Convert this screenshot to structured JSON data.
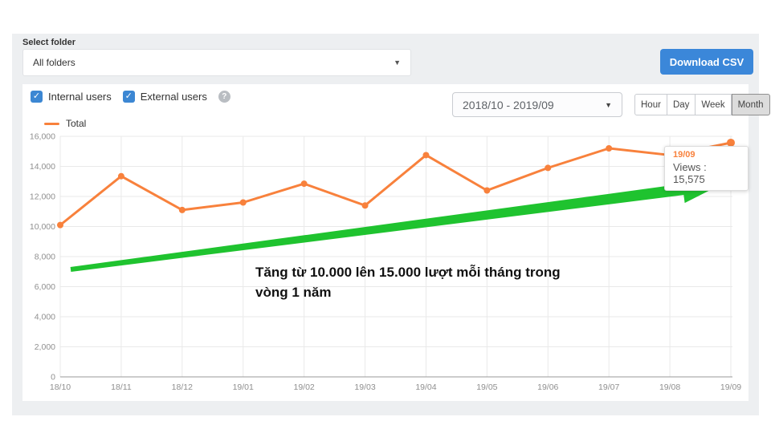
{
  "controls": {
    "select_folder_label": "Select folder",
    "folder_value": "All folders",
    "download_button": "Download CSV"
  },
  "filters": {
    "internal_label": "Internal users",
    "external_label": "External users",
    "date_range": "2018/10 - 2019/09",
    "granularity": [
      "Hour",
      "Day",
      "Week",
      "Month"
    ],
    "granularity_selected": "Month"
  },
  "chart_data": {
    "type": "line",
    "title": "",
    "xlabel": "",
    "ylabel": "",
    "categories": [
      "18/10",
      "18/11",
      "18/12",
      "19/01",
      "19/02",
      "19/03",
      "19/04",
      "19/05",
      "19/06",
      "19/07",
      "19/08",
      "19/09"
    ],
    "series": [
      {
        "name": "Total",
        "color": "#f8813c",
        "values": [
          10100,
          13350,
          11100,
          11600,
          12850,
          11400,
          14750,
          12400,
          13900,
          15200,
          14750,
          15575
        ]
      }
    ],
    "ylim": [
      0,
      16000
    ],
    "ytick_step": 2000,
    "grid": true,
    "legend_position": "top-left"
  },
  "tooltip": {
    "date": "19/09",
    "label": "Views",
    "separator": " : ",
    "value": "15,575"
  },
  "annotation": {
    "text": "Tăng từ 10.000 lên 15.000 lượt mỗi tháng trong\nvòng 1 năm",
    "arrow_color": "#1fc32f"
  },
  "colors": {
    "page_background": "#edeff1",
    "card_background": "#ffffff",
    "accent_blue": "#3b87d9",
    "checkbox_blue": "#3c87d3",
    "series_orange": "#f8813c",
    "arrow_green": "#1fc32f",
    "grid_line": "#e9e9e9",
    "axis_line": "#999999",
    "axis_text": "#8f8f8f"
  }
}
